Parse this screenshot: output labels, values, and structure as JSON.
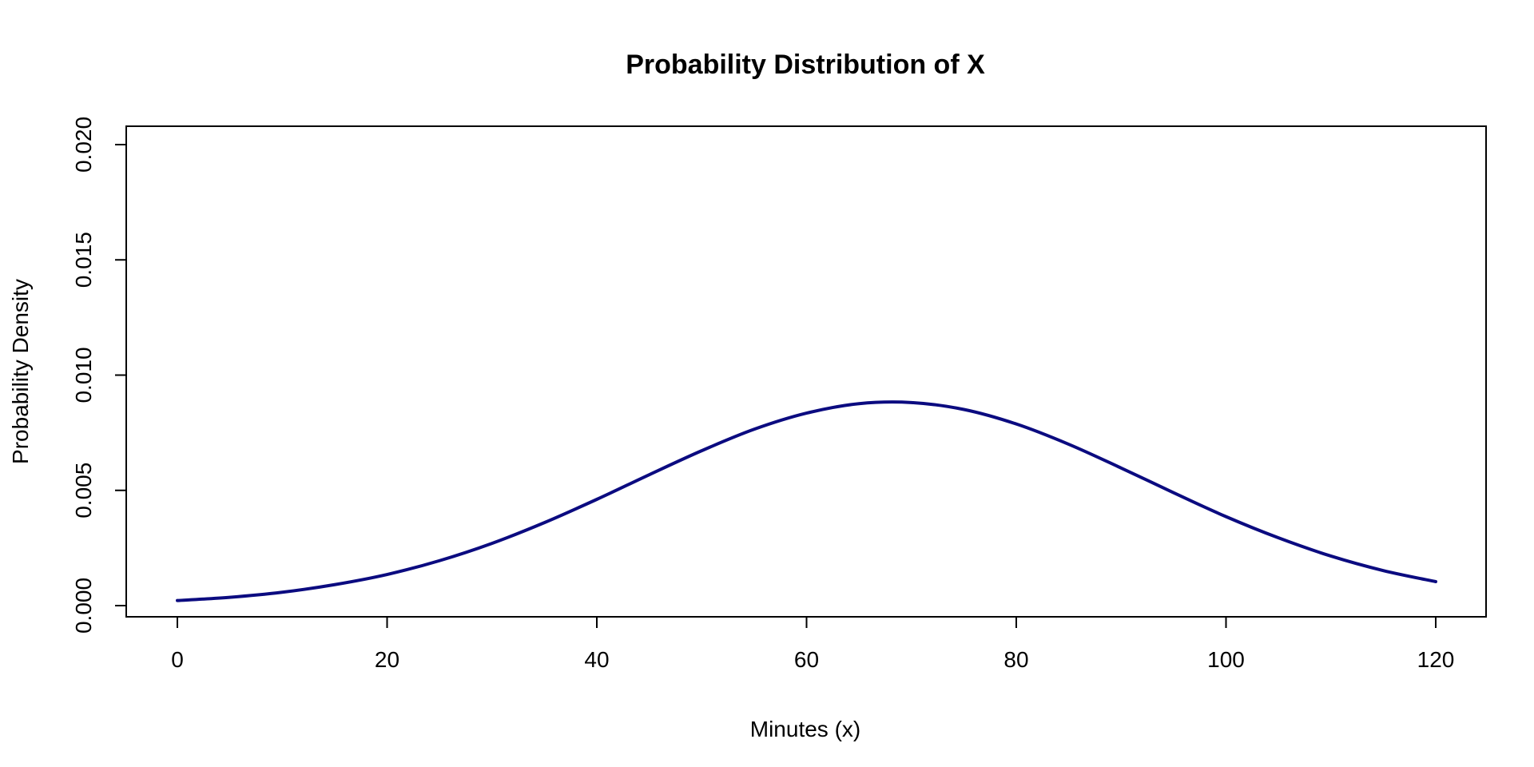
{
  "chart_data": {
    "type": "line",
    "title": "Probability Distribution of X",
    "xlabel": "Minutes (x)",
    "ylabel": "Probability Density",
    "xlim": [
      0,
      120
    ],
    "ylim": [
      0,
      0.02
    ],
    "x_ticks": [
      0,
      20,
      40,
      60,
      80,
      100,
      120
    ],
    "x_tick_labels": [
      "0",
      "20",
      "40",
      "60",
      "80",
      "100",
      "120"
    ],
    "y_ticks": [
      0,
      0.005,
      0.01,
      0.015,
      0.02
    ],
    "y_tick_labels": [
      "0.000",
      "0.005",
      "0.010",
      "0.015",
      "0.020"
    ],
    "grid": false,
    "legend": "none",
    "series": [
      {
        "color": "#0b0b80",
        "x": [
          0,
          5,
          10,
          15,
          20,
          25,
          30,
          35,
          40,
          45,
          50,
          55,
          60,
          65,
          70,
          75,
          80,
          85,
          90,
          95,
          100,
          105,
          110,
          115,
          120
        ],
        "values": [
          0.00022,
          0.00036,
          0.00058,
          0.00091,
          0.00135,
          0.00195,
          0.0027,
          0.0036,
          0.00461,
          0.00568,
          0.00672,
          0.00765,
          0.00835,
          0.00876,
          0.00881,
          0.00851,
          0.00788,
          0.007,
          0.00597,
          0.0049,
          0.00386,
          0.00294,
          0.00215,
          0.00152,
          0.00104
        ]
      }
    ]
  }
}
